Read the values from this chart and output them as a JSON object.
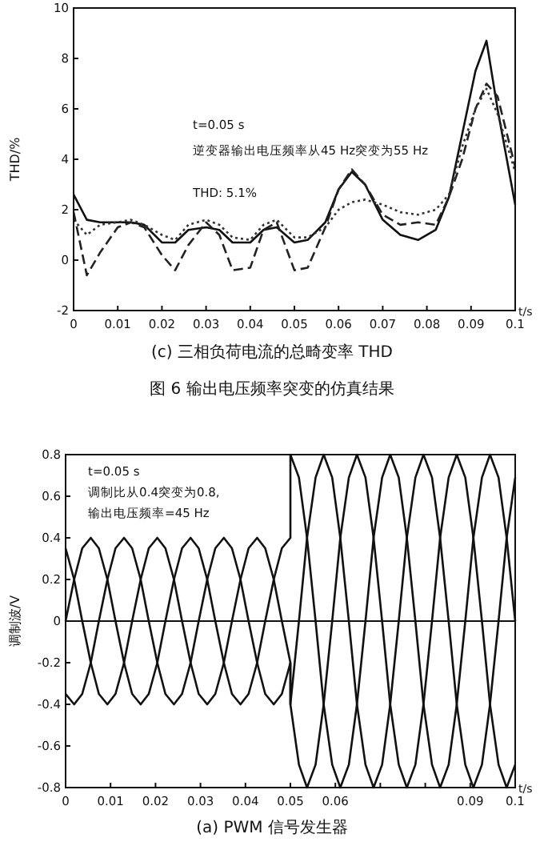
{
  "chart_data": [
    {
      "type": "line",
      "title": "(c) 三相负荷电流的总畸变率 THD",
      "subtitle": "图 6 输出电压频率突变的仿真结果",
      "xlabel": "t/s",
      "ylabel": "THD/%",
      "x": [
        0,
        0.003,
        0.006,
        0.01,
        0.013,
        0.016,
        0.02,
        0.023,
        0.026,
        0.03,
        0.033,
        0.036,
        0.04,
        0.043,
        0.046,
        0.05,
        0.053,
        0.057,
        0.06,
        0.063,
        0.066,
        0.07,
        0.074,
        0.078,
        0.082,
        0.085,
        0.088,
        0.091,
        0.0935,
        0.096,
        0.1
      ],
      "series": [
        {
          "color": "#111111",
          "line_style": "solid",
          "values": [
            2.6,
            1.6,
            1.5,
            1.5,
            1.5,
            1.4,
            0.7,
            0.7,
            1.2,
            1.3,
            1.2,
            0.7,
            0.7,
            1.2,
            1.3,
            0.7,
            0.8,
            1.5,
            2.8,
            3.5,
            3.0,
            1.6,
            1.0,
            0.8,
            1.2,
            2.5,
            5.0,
            7.5,
            8.7,
            6.0,
            2.2
          ]
        },
        {
          "color": "#222222",
          "line_style": "dashed",
          "values": [
            1.9,
            -0.6,
            0.3,
            1.3,
            1.5,
            1.3,
            0.2,
            -0.4,
            0.6,
            1.5,
            1.0,
            -0.4,
            -0.3,
            1.2,
            1.5,
            -0.4,
            -0.3,
            1.3,
            2.8,
            3.6,
            3.0,
            1.8,
            1.4,
            1.5,
            1.4,
            2.5,
            4.0,
            6.0,
            7.0,
            6.5,
            3.7
          ]
        },
        {
          "color": "#333333",
          "line_style": "dotted",
          "values": [
            1.6,
            1.0,
            1.4,
            1.5,
            1.6,
            1.4,
            1.0,
            0.8,
            1.4,
            1.6,
            1.4,
            0.9,
            0.8,
            1.4,
            1.6,
            0.9,
            0.9,
            1.3,
            2.0,
            2.3,
            2.4,
            2.2,
            1.9,
            1.8,
            2.0,
            2.6,
            4.5,
            6.0,
            6.8,
            5.8,
            3.5
          ]
        }
      ],
      "xlim": [
        0,
        0.1
      ],
      "ylim": [
        -2,
        10
      ],
      "xticks": [
        0,
        0.01,
        0.02,
        0.03,
        0.04,
        0.05,
        0.06,
        0.07,
        0.08,
        0.09,
        0.1
      ],
      "yticks": [
        -2,
        0,
        2,
        4,
        6,
        8,
        10
      ],
      "annotations": [
        "t=0.05 s",
        "逆变器输出电压频率从45 Hz突变为55 Hz",
        "THD: 5.1%"
      ]
    },
    {
      "type": "line",
      "title": "(a) PWM 信号发生器",
      "xlabel": "t/s",
      "ylabel": "调制波/V",
      "x": [
        0,
        0.0019,
        0.0037,
        0.0056,
        0.0074,
        0.0093,
        0.0111,
        0.013,
        0.0148,
        0.0167,
        0.0185,
        0.0204,
        0.0222,
        0.0241,
        0.0259,
        0.0278,
        0.0296,
        0.0315,
        0.0333,
        0.0352,
        0.037,
        0.0389,
        0.0407,
        0.0426,
        0.0444,
        0.0463,
        0.0481,
        0.05,
        0.05,
        0.0519,
        0.0537,
        0.0556,
        0.0574,
        0.0593,
        0.0611,
        0.063,
        0.0648,
        0.0667,
        0.0685,
        0.0704,
        0.0722,
        0.0741,
        0.0759,
        0.0778,
        0.0796,
        0.0815,
        0.0833,
        0.0852,
        0.087,
        0.0889,
        0.0907,
        0.0926,
        0.0944,
        0.0963,
        0.0981,
        0.1
      ],
      "series": [
        {
          "color": "#111111",
          "values": [
            0,
            0.2,
            0.35,
            0.4,
            0.35,
            0.2,
            0,
            -0.2,
            -0.35,
            -0.4,
            -0.35,
            -0.2,
            0,
            0.2,
            0.35,
            0.4,
            0.35,
            0.2,
            0,
            -0.2,
            -0.35,
            -0.4,
            -0.35,
            -0.2,
            0,
            0.2,
            0.35,
            0.4,
            0.8,
            0.69,
            0.4,
            0,
            -0.4,
            -0.69,
            -0.8,
            -0.69,
            -0.4,
            0,
            0.4,
            0.69,
            0.8,
            0.69,
            0.4,
            0,
            -0.4,
            -0.69,
            -0.8,
            -0.69,
            -0.4,
            0,
            0.4,
            0.69,
            0.8,
            0.69,
            0.4,
            0
          ]
        },
        {
          "color": "#111111",
          "values": [
            -0.35,
            -0.4,
            -0.35,
            -0.2,
            0,
            0.2,
            0.35,
            0.4,
            0.35,
            0.2,
            0,
            -0.2,
            -0.35,
            -0.4,
            -0.35,
            -0.2,
            0,
            0.2,
            0.35,
            0.4,
            0.35,
            0.2,
            0,
            -0.2,
            -0.35,
            -0.4,
            -0.35,
            -0.2,
            -0.4,
            0,
            0.4,
            0.69,
            0.8,
            0.69,
            0.4,
            0,
            -0.4,
            -0.69,
            -0.8,
            -0.69,
            -0.4,
            0,
            0.4,
            0.69,
            0.8,
            0.69,
            0.4,
            0,
            -0.4,
            -0.69,
            -0.8,
            -0.69,
            -0.4,
            0,
            0.4,
            0.69
          ]
        },
        {
          "color": "#111111",
          "values": [
            0.35,
            0.2,
            0,
            -0.2,
            -0.35,
            -0.4,
            -0.35,
            -0.2,
            0,
            0.2,
            0.35,
            0.4,
            0.35,
            0.2,
            0,
            -0.2,
            -0.35,
            -0.4,
            -0.35,
            -0.2,
            0,
            0.2,
            0.35,
            0.4,
            0.35,
            0.2,
            0,
            -0.2,
            -0.4,
            -0.69,
            -0.8,
            -0.69,
            -0.4,
            0,
            0.4,
            0.69,
            0.8,
            0.69,
            0.4,
            0,
            -0.4,
            -0.69,
            -0.8,
            -0.69,
            -0.4,
            0,
            0.4,
            0.69,
            0.8,
            0.69,
            0.4,
            0,
            -0.4,
            -0.69,
            -0.8,
            -0.69
          ]
        }
      ],
      "xlim": [
        0,
        0.1
      ],
      "ylim": [
        -0.8,
        0.8
      ],
      "xticks": [
        0,
        0.01,
        0.02,
        0.03,
        0.04,
        0.05,
        0.06,
        {
          "value": 0.07,
          "label": null
        },
        {
          "value": 0.08,
          "label": null
        },
        0.09,
        0.1
      ],
      "yticks": [
        -0.8,
        -0.6,
        -0.4,
        -0.2,
        0,
        0.2,
        0.4,
        0.6,
        0.8
      ],
      "ref_lines": [
        {
          "axis": "y",
          "value": 0
        }
      ],
      "annotations": [
        "t=0.05 s",
        "调制比从0.4突变为0.8,",
        "输出电压频率=45 Hz"
      ]
    }
  ]
}
